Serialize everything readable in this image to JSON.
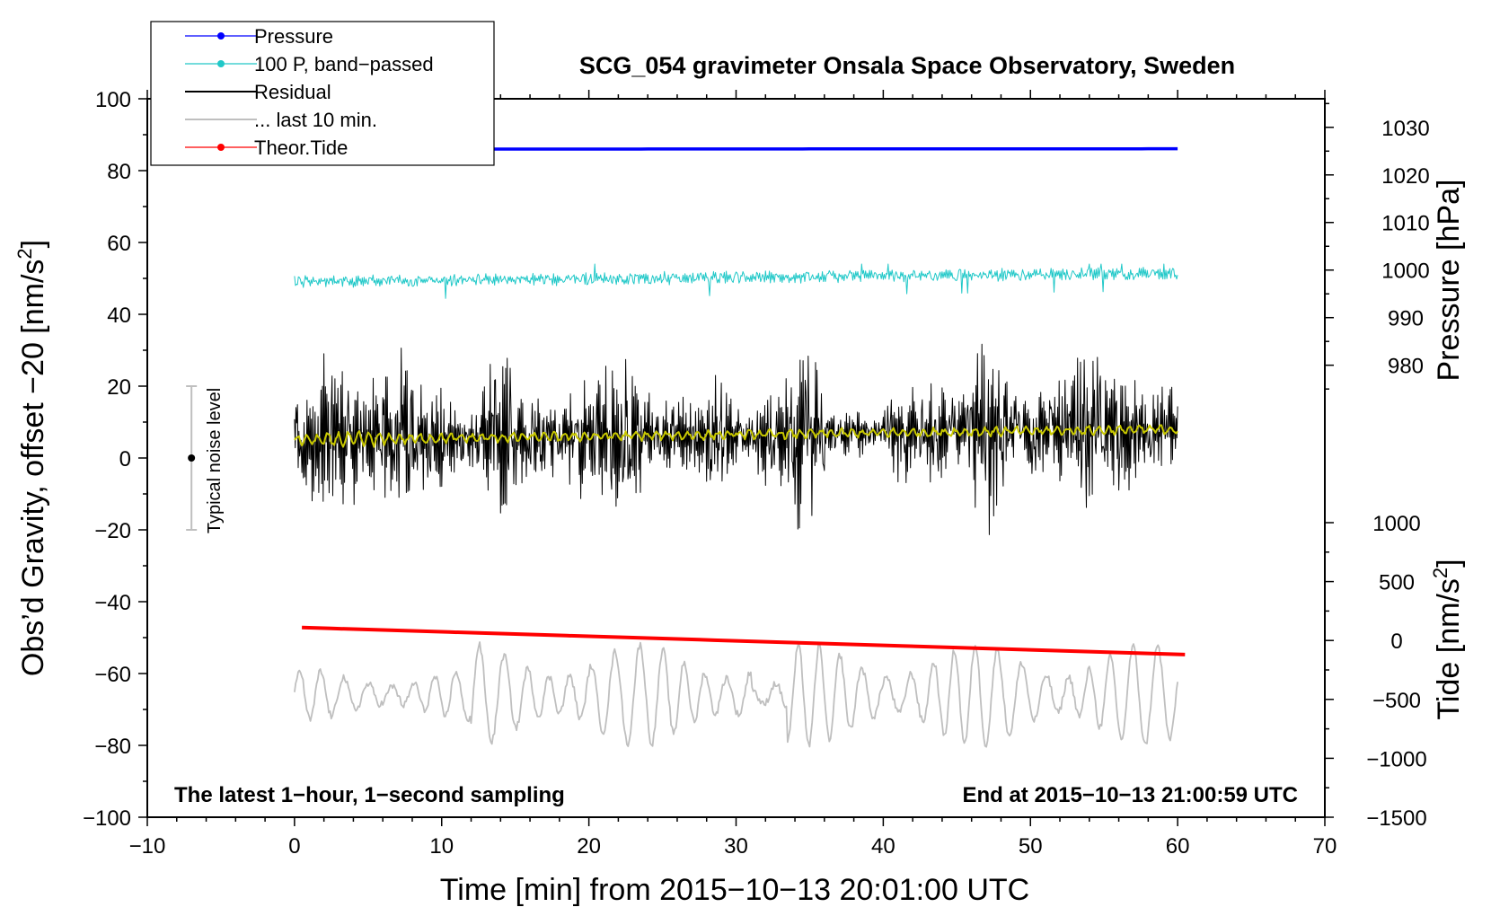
{
  "chart_data": {
    "type": "line",
    "title": "SCG_054 gravimeter Onsala Space Observatory, Sweden",
    "xlabel": "Time [min] from 2015−10−13 20:01:00 UTC",
    "ylabel_main": "Obs’d Gravity, offset −20 [nm/s",
    "ylabel_sup": "2",
    "ylabel_close": "]",
    "ylabel_pressure": "Pressure [hPa]",
    "ylabel_tide": "Tide [nm/s",
    "ylabel_tide_sup": "2",
    "ylabel_tide_close": "]",
    "xlim": [
      -10,
      70
    ],
    "ylim": [
      -100,
      100
    ],
    "x_ticks": [
      -10,
      0,
      10,
      20,
      30,
      40,
      50,
      60,
      70
    ],
    "x_tick_labels": [
      "−10",
      "0",
      "10",
      "20",
      "30",
      "40",
      "50",
      "60",
      "70"
    ],
    "y_ticks": [
      -100,
      -80,
      -60,
      -40,
      -20,
      0,
      20,
      40,
      60,
      80,
      100
    ],
    "y_tick_labels": [
      "−100",
      "−80",
      "−60",
      "−40",
      "−20",
      "0",
      "20",
      "40",
      "60",
      "80",
      "100"
    ],
    "pressure_axis": {
      "ticks": [
        980,
        990,
        1000,
        1010,
        1020,
        1030
      ],
      "tick_labels": [
        "980",
        "990",
        "1000",
        "1010",
        "1020",
        "1030"
      ],
      "map_gravity_range": [
        -100,
        100
      ],
      "map_pressure_range": [
        885,
        1036
      ]
    },
    "tide_axis": {
      "ticks": [
        -1500,
        -1000,
        -500,
        0,
        500,
        1000
      ],
      "tick_labels": [
        "−1500",
        "−1000",
        "−500",
        "0",
        "500",
        "1000"
      ],
      "map_gravity_range": [
        -100,
        -18
      ],
      "map_tide_range": [
        -1500,
        1000
      ]
    },
    "annotations": {
      "bottom_left": "The latest 1−hour, 1−second sampling",
      "bottom_right": "End at 2015−10−13 21:00:59 UTC",
      "noise_label": "Typical noise level",
      "noise_bar": {
        "x": -7,
        "center": 0,
        "low": -20,
        "high": 20
      }
    },
    "legend": {
      "placement": "top-left",
      "entries": [
        {
          "label": "Pressure",
          "color": "#0000ff",
          "marker": true
        },
        {
          "label": "100 P, band−passed",
          "color": "#20c8c8",
          "marker": true
        },
        {
          "label": "Residual",
          "color": "#000000",
          "marker": false
        },
        {
          "label": "... last 10 min.",
          "color": "#bfbfbf",
          "marker": false
        },
        {
          "label": "Theor.Tide",
          "color": "#ff0000",
          "marker": true
        }
      ]
    },
    "series": [
      {
        "name": "Pressure",
        "color": "#0000ff",
        "units": "hPa",
        "x_range": [
          0,
          60
        ],
        "value_start": 1025.4,
        "value_end": 1025.5,
        "gravity_level": 85.5
      },
      {
        "name": "100 P, band-passed",
        "color": "#20c8c8",
        "x_range": [
          0,
          60
        ],
        "level_start": 49,
        "level_end": 51.5,
        "amplitude": 2.5,
        "spike_max": 54,
        "spike_min": 43.5
      },
      {
        "name": "Residual",
        "color": "#000000",
        "x_range": [
          0,
          60
        ],
        "amplitude": 20,
        "max": 36,
        "min": -23.5
      },
      {
        "name": "Residual smoothed",
        "color": "#c8c800",
        "x_range": [
          0,
          60
        ],
        "level_start": 5,
        "level_end": 8
      },
      {
        "name": "... last 10 min.",
        "color": "#bfbfbf",
        "x_range": [
          0,
          60
        ],
        "center": -66,
        "amplitude": 14,
        "min": -84,
        "max": -40
      },
      {
        "name": "Theor.Tide",
        "color": "#ff0000",
        "units": "nm/s2",
        "x_range": [
          0.5,
          60.5
        ],
        "value_start": 110,
        "value_end": -120
      }
    ],
    "colors": {
      "pressure": "#0000ff",
      "bandpassed": "#20c8c8",
      "residual": "#000000",
      "smoothed": "#c8c800",
      "last10": "#bfbfbf",
      "tide": "#ff0000",
      "noise_bar": "#bfbfbf"
    }
  }
}
